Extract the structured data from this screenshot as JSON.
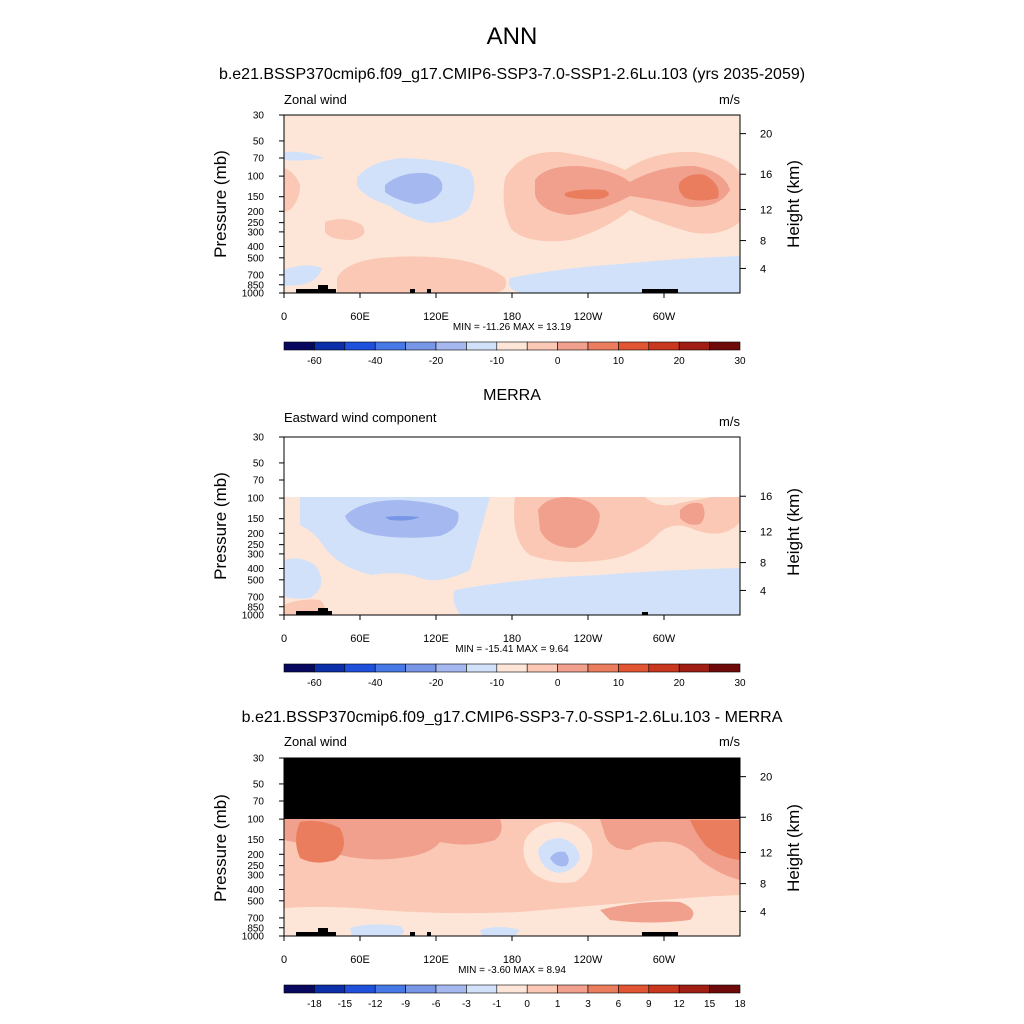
{
  "main_title": "ANN",
  "chart_data": [
    {
      "type": "contour",
      "title": "b.e21.BSSP370cmip6.f09_g17.CMIP6-SSP3-7.0-SSP1-2.6Lu.103 (yrs 2035-2059)",
      "left_label": "Zonal wind",
      "right_label": "m/s",
      "ylabel": "Pressure (mb)",
      "ylabel_right": "Height (km)",
      "y_ticks": [
        "30",
        "50",
        "70",
        "100",
        "150",
        "200",
        "250",
        "300",
        "400",
        "500",
        "700",
        "850",
        "1000"
      ],
      "height_ticks": [
        "4",
        "8",
        "12",
        "16",
        "20"
      ],
      "x_ticks": [
        "0",
        "60E",
        "120E",
        "180",
        "120W",
        "60W"
      ],
      "stats": "MIN = -11.26  MAX =  13.19",
      "colorbar_labels": [
        "-60",
        "-40",
        "-20",
        "-10",
        "0",
        "10",
        "20",
        "30"
      ],
      "masked_above_100mb": false
    },
    {
      "type": "contour",
      "title": "MERRA",
      "left_label": "Eastward wind component",
      "right_label": "m/s",
      "ylabel": "Pressure (mb)",
      "ylabel_right": "Height (km)",
      "y_ticks": [
        "30",
        "50",
        "70",
        "100",
        "150",
        "200",
        "250",
        "300",
        "400",
        "500",
        "700",
        "850",
        "1000"
      ],
      "height_ticks": [
        "4",
        "8",
        "12",
        "16"
      ],
      "x_ticks": [
        "0",
        "60E",
        "120E",
        "180",
        "120W",
        "60W"
      ],
      "stats": "MIN = -15.41  MAX =   9.64",
      "colorbar_labels": [
        "-60",
        "-40",
        "-20",
        "-10",
        "0",
        "10",
        "20",
        "30"
      ],
      "masked_above_100mb": false
    },
    {
      "type": "contour",
      "title": "b.e21.BSSP370cmip6.f09_g17.CMIP6-SSP3-7.0-SSP1-2.6Lu.103 - MERRA",
      "left_label": "Zonal wind",
      "right_label": "m/s",
      "ylabel": "Pressure (mb)",
      "ylabel_right": "Height (km)",
      "y_ticks": [
        "30",
        "50",
        "70",
        "100",
        "150",
        "200",
        "250",
        "300",
        "400",
        "500",
        "700",
        "850",
        "1000"
      ],
      "height_ticks": [
        "4",
        "8",
        "12",
        "16",
        "20"
      ],
      "x_ticks": [
        "0",
        "60E",
        "120E",
        "180",
        "120W",
        "60W"
      ],
      "stats": "MIN =  -3.60  MAX =  8.94",
      "colorbar_labels": [
        "-18",
        "-15",
        "-12",
        "-9",
        "-6",
        "-3",
        "-1",
        "0",
        "1",
        "3",
        "6",
        "9",
        "12",
        "15",
        "18"
      ],
      "masked_above_100mb": true
    }
  ],
  "colors": {
    "colorbar": [
      "#08085e",
      "#0a2fa8",
      "#1e50dc",
      "#4678e6",
      "#7896e6",
      "#a5b9f0",
      "#d2e1fa",
      "#fde6d7",
      "#fac8b4",
      "#f0a08c",
      "#eb7d5f",
      "#e15532",
      "#c8371e",
      "#a01e14",
      "#6e0a0a"
    ],
    "mask": "#000000",
    "topography": "#000000"
  }
}
